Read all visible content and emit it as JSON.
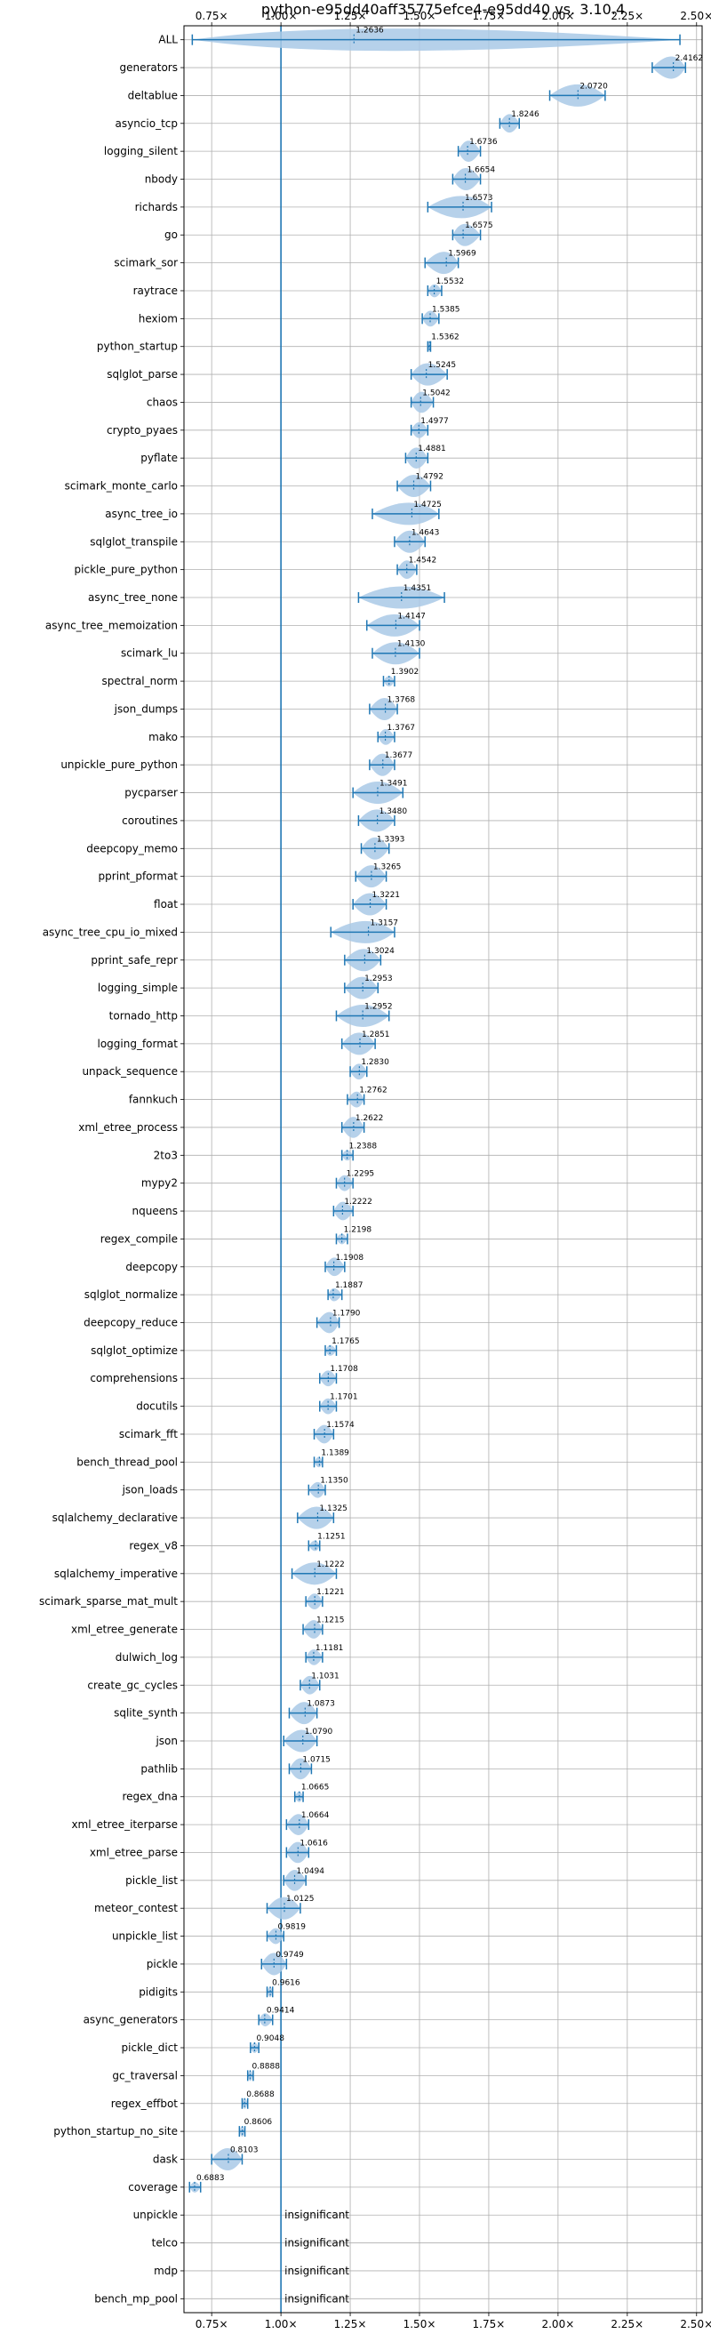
{
  "chart_data": {
    "type": "violin",
    "title": "python-e95dd40aff35775efce4-e95dd40 vs. 3.10.4",
    "xlabel": "",
    "ylabel": "",
    "xlim": [
      0.65,
      2.52
    ],
    "xticks": [
      0.75,
      1.0,
      1.25,
      1.5,
      1.75,
      2.0,
      2.25,
      2.5
    ],
    "xtick_labels": [
      "0.75×",
      "1.00×",
      "1.25×",
      "1.50×",
      "1.75×",
      "2.00×",
      "2.25×",
      "2.50×"
    ],
    "reference_line": 1.0,
    "grid": true,
    "colors": {
      "violin": "#a9c9e6",
      "line": "#1f77b4",
      "grid": "#b0b0b0"
    },
    "categories": [
      "ALL",
      "generators",
      "deltablue",
      "asyncio_tcp",
      "logging_silent",
      "nbody",
      "richards",
      "go",
      "scimark_sor",
      "raytrace",
      "hexiom",
      "python_startup",
      "sqlglot_parse",
      "chaos",
      "crypto_pyaes",
      "pyflate",
      "scimark_monte_carlo",
      "async_tree_io",
      "sqlglot_transpile",
      "pickle_pure_python",
      "async_tree_none",
      "async_tree_memoization",
      "scimark_lu",
      "spectral_norm",
      "json_dumps",
      "mako",
      "unpickle_pure_python",
      "pycparser",
      "coroutines",
      "deepcopy_memo",
      "pprint_pformat",
      "float",
      "async_tree_cpu_io_mixed",
      "pprint_safe_repr",
      "logging_simple",
      "tornado_http",
      "logging_format",
      "unpack_sequence",
      "fannkuch",
      "xml_etree_process",
      "2to3",
      "mypy2",
      "nqueens",
      "regex_compile",
      "deepcopy",
      "sqlglot_normalize",
      "deepcopy_reduce",
      "sqlglot_optimize",
      "comprehensions",
      "docutils",
      "scimark_fft",
      "bench_thread_pool",
      "json_loads",
      "sqlalchemy_declarative",
      "regex_v8",
      "sqlalchemy_imperative",
      "scimark_sparse_mat_mult",
      "xml_etree_generate",
      "dulwich_log",
      "create_gc_cycles",
      "sqlite_synth",
      "json",
      "pathlib",
      "regex_dna",
      "xml_etree_iterparse",
      "xml_etree_parse",
      "pickle_list",
      "meteor_contest",
      "unpickle_list",
      "pickle",
      "pidigits",
      "async_generators",
      "pickle_dict",
      "gc_traversal",
      "regex_effbot",
      "python_startup_no_site",
      "dask",
      "coverage",
      "unpickle",
      "telco",
      "mdp",
      "bench_mp_pool"
    ],
    "values": [
      1.2636,
      2.4162,
      2.072,
      1.8246,
      1.6736,
      1.6654,
      1.6573,
      1.6575,
      1.5969,
      1.5532,
      1.5385,
      1.5362,
      1.5245,
      1.5042,
      1.4977,
      1.4881,
      1.4792,
      1.4725,
      1.4643,
      1.4542,
      1.4351,
      1.4147,
      1.413,
      1.3902,
      1.3768,
      1.3767,
      1.3677,
      1.3491,
      1.348,
      1.3393,
      1.3265,
      1.3221,
      1.3157,
      1.3024,
      1.2953,
      1.2952,
      1.2851,
      1.283,
      1.2762,
      1.2622,
      1.2388,
      1.2295,
      1.2222,
      1.2198,
      1.1908,
      1.1887,
      1.179,
      1.1765,
      1.1708,
      1.1701,
      1.1574,
      1.1389,
      1.135,
      1.1325,
      1.1251,
      1.1222,
      1.1221,
      1.1215,
      1.1181,
      1.1031,
      1.0873,
      1.079,
      1.0715,
      1.0665,
      1.0664,
      1.0616,
      1.0494,
      1.0125,
      0.9819,
      0.9749,
      0.9616,
      0.9414,
      0.9048,
      0.8888,
      0.8688,
      0.8606,
      0.8103,
      0.6883,
      null,
      null,
      null,
      null
    ],
    "value_labels": [
      "1.2636",
      "2.4162",
      "2.0720",
      "1.8246",
      "1.6736",
      "1.6654",
      "1.6573",
      "1.6575",
      "1.5969",
      "1.5532",
      "1.5385",
      "1.5362",
      "1.5245",
      "1.5042",
      "1.4977",
      "1.4881",
      "1.4792",
      "1.4725",
      "1.4643",
      "1.4542",
      "1.4351",
      "1.4147",
      "1.4130",
      "1.3902",
      "1.3768",
      "1.3767",
      "1.3677",
      "1.3491",
      "1.3480",
      "1.3393",
      "1.3265",
      "1.3221",
      "1.3157",
      "1.3024",
      "1.2953",
      "1.2952",
      "1.2851",
      "1.2830",
      "1.2762",
      "1.2622",
      "1.2388",
      "1.2295",
      "1.2222",
      "1.2198",
      "1.1908",
      "1.1887",
      "1.1790",
      "1.1765",
      "1.1708",
      "1.1701",
      "1.1574",
      "1.1389",
      "1.1350",
      "1.1325",
      "1.1251",
      "1.1222",
      "1.1221",
      "1.1215",
      "1.1181",
      "1.1031",
      "1.0873",
      "1.0790",
      "1.0715",
      "1.0665",
      "1.0664",
      "1.0616",
      "1.0494",
      "1.0125",
      "0.9819",
      "0.9749",
      "0.9616",
      "0.9414",
      "0.9048",
      "0.8888",
      "0.8688",
      "0.8606",
      "0.8103",
      "0.6883",
      "",
      "",
      "",
      ""
    ],
    "ranges": [
      [
        0.68,
        2.44
      ],
      [
        2.34,
        2.46
      ],
      [
        1.97,
        2.17
      ],
      [
        1.79,
        1.86
      ],
      [
        1.64,
        1.72
      ],
      [
        1.62,
        1.72
      ],
      [
        1.53,
        1.76
      ],
      [
        1.62,
        1.72
      ],
      [
        1.52,
        1.64
      ],
      [
        1.53,
        1.58
      ],
      [
        1.51,
        1.57
      ],
      [
        1.53,
        1.54
      ],
      [
        1.47,
        1.6
      ],
      [
        1.47,
        1.55
      ],
      [
        1.47,
        1.53
      ],
      [
        1.45,
        1.53
      ],
      [
        1.42,
        1.54
      ],
      [
        1.33,
        1.57
      ],
      [
        1.41,
        1.52
      ],
      [
        1.42,
        1.49
      ],
      [
        1.28,
        1.59
      ],
      [
        1.31,
        1.5
      ],
      [
        1.33,
        1.5
      ],
      [
        1.37,
        1.41
      ],
      [
        1.32,
        1.42
      ],
      [
        1.35,
        1.41
      ],
      [
        1.32,
        1.41
      ],
      [
        1.26,
        1.44
      ],
      [
        1.28,
        1.41
      ],
      [
        1.29,
        1.39
      ],
      [
        1.27,
        1.38
      ],
      [
        1.26,
        1.38
      ],
      [
        1.18,
        1.41
      ],
      [
        1.23,
        1.36
      ],
      [
        1.23,
        1.35
      ],
      [
        1.2,
        1.39
      ],
      [
        1.22,
        1.34
      ],
      [
        1.25,
        1.31
      ],
      [
        1.24,
        1.3
      ],
      [
        1.22,
        1.3
      ],
      [
        1.22,
        1.26
      ],
      [
        1.2,
        1.26
      ],
      [
        1.19,
        1.26
      ],
      [
        1.2,
        1.24
      ],
      [
        1.16,
        1.23
      ],
      [
        1.17,
        1.22
      ],
      [
        1.13,
        1.21
      ],
      [
        1.16,
        1.2
      ],
      [
        1.14,
        1.2
      ],
      [
        1.14,
        1.2
      ],
      [
        1.12,
        1.19
      ],
      [
        1.12,
        1.15
      ],
      [
        1.1,
        1.16
      ],
      [
        1.06,
        1.19
      ],
      [
        1.1,
        1.14
      ],
      [
        1.04,
        1.2
      ],
      [
        1.09,
        1.15
      ],
      [
        1.08,
        1.15
      ],
      [
        1.09,
        1.15
      ],
      [
        1.07,
        1.14
      ],
      [
        1.03,
        1.13
      ],
      [
        1.01,
        1.13
      ],
      [
        1.03,
        1.11
      ],
      [
        1.05,
        1.08
      ],
      [
        1.02,
        1.1
      ],
      [
        1.02,
        1.1
      ],
      [
        1.01,
        1.09
      ],
      [
        0.95,
        1.07
      ],
      [
        0.95,
        1.01
      ],
      [
        0.93,
        1.02
      ],
      [
        0.95,
        0.97
      ],
      [
        0.92,
        0.97
      ],
      [
        0.89,
        0.92
      ],
      [
        0.88,
        0.9
      ],
      [
        0.86,
        0.88
      ],
      [
        0.85,
        0.87
      ],
      [
        0.75,
        0.86
      ],
      [
        0.67,
        0.71
      ],
      null,
      null,
      null,
      null
    ],
    "insignificant_label": "insignificant"
  }
}
